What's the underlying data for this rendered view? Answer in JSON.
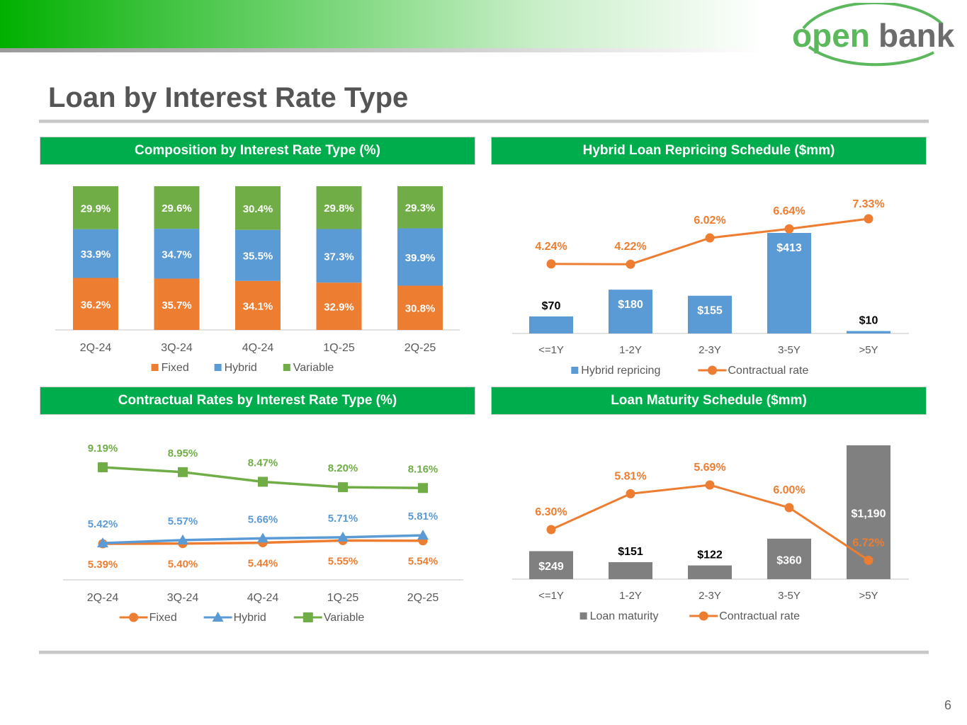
{
  "page": {
    "title": "Loan by Interest Rate Type",
    "page_number": "6"
  },
  "logo": {
    "text_open": "open",
    "text_bank": "bank",
    "color": "#5cb85c"
  },
  "colors": {
    "fixed": "#ed7d31",
    "hybrid": "#5b9bd5",
    "variable": "#70ad47",
    "maturity": "#808080",
    "header_green": "#00ad4c"
  },
  "panels": {
    "composition": {
      "title": "Composition by Interest Rate Type (%)"
    },
    "repricing": {
      "title": "Hybrid Loan Repricing Schedule ($mm)"
    },
    "rates": {
      "title": "Contractual Rates by Interest Rate Type (%)"
    },
    "maturity": {
      "title": "Loan Maturity Schedule ($mm)"
    }
  },
  "chart_data": [
    {
      "id": "composition",
      "type": "bar",
      "stacked": true,
      "title": "Composition by Interest Rate Type (%)",
      "categories": [
        "2Q-24",
        "3Q-24",
        "4Q-24",
        "1Q-25",
        "2Q-25"
      ],
      "series": [
        {
          "name": "Fixed",
          "values": [
            36.2,
            35.7,
            34.1,
            32.9,
            30.8
          ],
          "labels": [
            "36.2%",
            "35.7%",
            "34.1%",
            "32.9%",
            "30.8%"
          ]
        },
        {
          "name": "Hybrid",
          "values": [
            33.9,
            34.7,
            35.5,
            37.3,
            39.9
          ],
          "labels": [
            "33.9%",
            "34.7%",
            "35.5%",
            "37.3%",
            "39.9%"
          ]
        },
        {
          "name": "Variable",
          "values": [
            29.9,
            29.6,
            30.4,
            29.8,
            29.3
          ],
          "labels": [
            "29.9%",
            "29.6%",
            "30.4%",
            "29.8%",
            "29.3%"
          ]
        }
      ],
      "ylim": [
        0,
        100
      ],
      "legend": "bottom"
    },
    {
      "id": "repricing",
      "type": "bar",
      "title": "Hybrid Loan Repricing Schedule ($mm)",
      "categories": [
        "<=1Y",
        "1-2Y",
        "2-3Y",
        "3-5Y",
        ">5Y"
      ],
      "series": [
        {
          "name": "Hybrid repricing",
          "values": [
            70,
            180,
            155,
            413,
            10
          ],
          "labels": [
            "$70",
            "$180",
            "$155",
            "$413",
            "$10"
          ]
        }
      ],
      "line_series": {
        "name": "Contractual rate",
        "values": [
          4.24,
          4.22,
          6.02,
          6.64,
          7.33
        ],
        "labels": [
          "4.24%",
          "4.22%",
          "6.02%",
          "6.64%",
          "7.33%"
        ]
      },
      "legend": "bottom"
    },
    {
      "id": "rates",
      "type": "line",
      "title": "Contractual Rates by Interest Rate Type (%)",
      "categories": [
        "2Q-24",
        "3Q-24",
        "4Q-24",
        "1Q-25",
        "2Q-25"
      ],
      "series": [
        {
          "name": "Fixed",
          "values": [
            5.39,
            5.4,
            5.44,
            5.55,
            5.54
          ],
          "labels": [
            "5.39%",
            "5.40%",
            "5.44%",
            "5.55%",
            "5.54%"
          ]
        },
        {
          "name": "Hybrid",
          "values": [
            5.42,
            5.57,
            5.66,
            5.71,
            5.81
          ],
          "labels": [
            "5.42%",
            "5.57%",
            "5.66%",
            "5.71%",
            "5.81%"
          ]
        },
        {
          "name": "Variable",
          "values": [
            9.19,
            8.95,
            8.47,
            8.2,
            8.16
          ],
          "labels": [
            "9.19%",
            "8.95%",
            "8.47%",
            "8.20%",
            "8.16%"
          ]
        }
      ],
      "legend": "bottom"
    },
    {
      "id": "maturity",
      "type": "bar",
      "title": "Loan Maturity Schedule ($mm)",
      "categories": [
        "<=1Y",
        "1-2Y",
        "2-3Y",
        "3-5Y",
        ">5Y"
      ],
      "series": [
        {
          "name": "Loan maturity",
          "values": [
            249,
            151,
            122,
            360,
            1190
          ],
          "labels": [
            "$249",
            "$151",
            "$122",
            "$360",
            "$1,190"
          ]
        }
      ],
      "line_series": {
        "name": "Contractual rate",
        "values": [
          6.3,
          5.81,
          5.69,
          6.0,
          6.72
        ],
        "labels": [
          "6.30%",
          "5.81%",
          "5.69%",
          "6.00%",
          "6.72%"
        ]
      },
      "legend": "bottom"
    }
  ]
}
